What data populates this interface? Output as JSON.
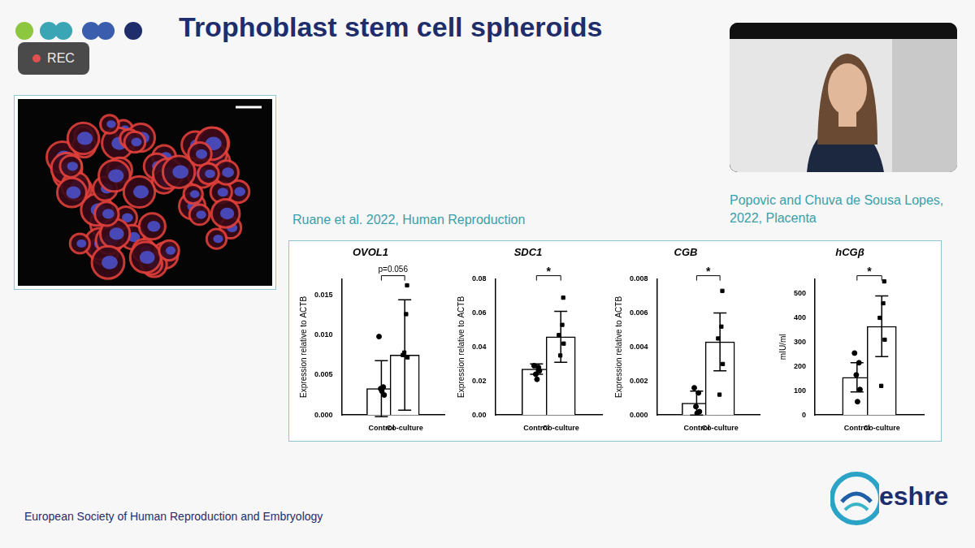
{
  "slide": {
    "title": "Trophoblast stem cell spheroids",
    "recording_label": "REC",
    "image_citation": "Popovic and Chuva de Sousa Lopes, 2022, Placenta",
    "chart_citation": "Ruane et al. 2022, Human Reproduction",
    "footer": "European Society of Human Reproduction and Embryology",
    "logo_text": "eshre"
  },
  "chart_data": [
    {
      "type": "bar",
      "title": "OVOL1",
      "y_label": "Expression relative to ACTB",
      "categories": [
        "Control",
        "Co-culture"
      ],
      "values": [
        0.0033,
        0.0075
      ],
      "errors": [
        0.0035,
        0.0069
      ],
      "points": [
        {
          "marker": "circle",
          "values": [
            0.0098,
            0.0035,
            0.0033,
            0.0025,
            0.003
          ]
        },
        {
          "marker": "square",
          "values": [
            0.0162,
            0.0126,
            0.0075,
            0.0072,
            0.0078
          ]
        }
      ],
      "annotation": "p=0.056",
      "color": "#ffffff",
      "grid": false,
      "ylim": [
        0,
        0.017
      ],
      "yticks": [
        {
          "value": 0,
          "label": "0.000"
        },
        {
          "value": 0.005,
          "label": "0.005"
        },
        {
          "value": 0.01,
          "label": "0.010"
        },
        {
          "value": 0.015,
          "label": "0.015"
        }
      ]
    },
    {
      "type": "bar",
      "title": "SDC1",
      "y_label": "Expression relative to ACTB",
      "categories": [
        "Control",
        "Co-culture"
      ],
      "values": [
        0.027,
        0.046
      ],
      "errors": [
        0.003,
        0.015
      ],
      "points": [
        {
          "marker": "circle",
          "values": [
            0.029,
            0.028,
            0.024,
            0.026,
            0.021
          ]
        },
        {
          "marker": "square",
          "values": [
            0.069,
            0.053,
            0.047,
            0.042,
            0.035
          ]
        }
      ],
      "annotation": "*",
      "color": "#ffffff",
      "grid": false,
      "ylim": [
        0,
        0.08
      ],
      "yticks": [
        {
          "value": 0,
          "label": "0.00"
        },
        {
          "value": 0.02,
          "label": "0.02"
        },
        {
          "value": 0.04,
          "label": "0.04"
        },
        {
          "value": 0.06,
          "label": "0.06"
        },
        {
          "value": 0.08,
          "label": "0.08"
        }
      ]
    },
    {
      "type": "bar",
      "title": "CGB",
      "y_label": "Expression relative to ACTB",
      "categories": [
        "Control",
        "Co-culture"
      ],
      "values": [
        0.0007,
        0.0043
      ],
      "errors": [
        0.0007,
        0.0017
      ],
      "points": [
        {
          "marker": "circle",
          "values": [
            0.0016,
            0.0013,
            0.0005,
            0.0002,
            0.0001
          ]
        },
        {
          "marker": "square",
          "values": [
            0.0073,
            0.0052,
            0.0045,
            0.003,
            0.0012
          ]
        }
      ],
      "annotation": "*",
      "color": "#ffffff",
      "grid": false,
      "ylim": [
        0,
        0.008
      ],
      "yticks": [
        {
          "value": 0,
          "label": "0.000"
        },
        {
          "value": 0.002,
          "label": "0.002"
        },
        {
          "value": 0.004,
          "label": "0.004"
        },
        {
          "value": 0.006,
          "label": "0.006"
        },
        {
          "value": 0.008,
          "label": "0.008"
        }
      ]
    },
    {
      "type": "bar",
      "title": "hCGβ",
      "y_label": "mIU/ml",
      "categories": [
        "Control",
        "Co-culture"
      ],
      "values": [
        155,
        365
      ],
      "errors": [
        60,
        125
      ],
      "points": [
        {
          "marker": "circle",
          "values": [
            255,
            215,
            165,
            105,
            55
          ]
        },
        {
          "marker": "square",
          "values": [
            550,
            460,
            400,
            310,
            120
          ]
        }
      ],
      "annotation": "*",
      "color": "#ffffff",
      "grid": false,
      "ylim": [
        0,
        560
      ],
      "yticks": [
        0,
        100,
        200,
        300,
        400,
        500
      ]
    }
  ]
}
